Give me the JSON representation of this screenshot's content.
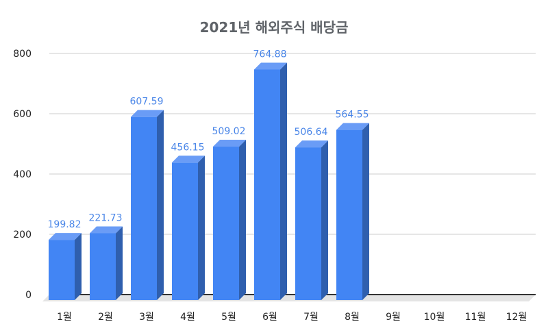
{
  "chart_data": {
    "type": "bar",
    "title": "2021년 해외주식 배당금",
    "categories": [
      "1월",
      "2월",
      "3월",
      "4월",
      "5월",
      "6월",
      "7월",
      "8월",
      "9월",
      "10월",
      "11월",
      "12월"
    ],
    "values": [
      199.82,
      221.73,
      607.59,
      456.15,
      509.02,
      764.88,
      506.64,
      564.55,
      null,
      null,
      null,
      null
    ],
    "data_labels": [
      "199.82",
      "221.73",
      "607.59",
      "456.15",
      "509.02",
      "764.88",
      "506.64",
      "564.55",
      "",
      "",
      "",
      ""
    ],
    "yticks": [
      "0",
      "200",
      "400",
      "600",
      "800"
    ],
    "ylim": [
      0,
      800
    ],
    "grid": true,
    "legend": "none",
    "style": "3d-column",
    "colors": {
      "bar_front": "#4285f4",
      "bar_side": "#2f5fae",
      "bar_top": "#6a9cf6",
      "data_label": "#4a86e8",
      "grid": "#cccccc",
      "axis_text": "#222222",
      "title": "#5f6368"
    }
  }
}
